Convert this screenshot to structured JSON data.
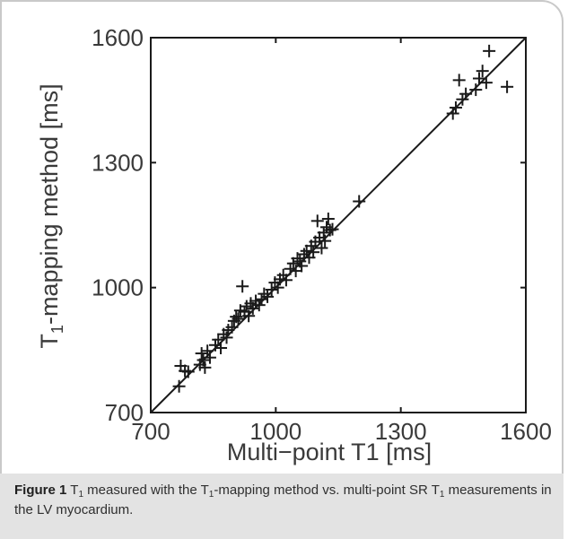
{
  "chart_data": {
    "type": "scatter",
    "xlabel": "Multi−point T1 [ms]",
    "ylabel_main": "T",
    "ylabel_sub": "1",
    "ylabel_rest": "-mapping method [ms]",
    "xlim": [
      700,
      1600
    ],
    "ylim": [
      700,
      1600
    ],
    "xticks": [
      700,
      1000,
      1300,
      1600
    ],
    "yticks": [
      700,
      1000,
      1300,
      1600
    ],
    "grid": false,
    "legend": "none",
    "identity_line": true,
    "marker": "+",
    "color": "#1a1a1a",
    "points": [
      [
        768,
        763
      ],
      [
        772,
        812
      ],
      [
        782,
        800
      ],
      [
        790,
        798
      ],
      [
        818,
        815
      ],
      [
        822,
        842
      ],
      [
        826,
        826
      ],
      [
        830,
        808
      ],
      [
        836,
        848
      ],
      [
        842,
        832
      ],
      [
        855,
        862
      ],
      [
        862,
        875
      ],
      [
        868,
        855
      ],
      [
        875,
        888
      ],
      [
        882,
        880
      ],
      [
        886,
        898
      ],
      [
        895,
        905
      ],
      [
        900,
        920
      ],
      [
        905,
        930
      ],
      [
        910,
        925
      ],
      [
        915,
        945
      ],
      [
        920,
        1003
      ],
      [
        925,
        942
      ],
      [
        930,
        955
      ],
      [
        935,
        932
      ],
      [
        940,
        962
      ],
      [
        945,
        950
      ],
      [
        952,
        968
      ],
      [
        960,
        958
      ],
      [
        966,
        972
      ],
      [
        972,
        985
      ],
      [
        980,
        978
      ],
      [
        990,
        995
      ],
      [
        998,
        1012
      ],
      [
        1005,
        1000
      ],
      [
        1010,
        1020
      ],
      [
        1018,
        1030
      ],
      [
        1025,
        1018
      ],
      [
        1035,
        1045
      ],
      [
        1042,
        1058
      ],
      [
        1048,
        1040
      ],
      [
        1052,
        1070
      ],
      [
        1058,
        1063
      ],
      [
        1062,
        1052
      ],
      [
        1068,
        1080
      ],
      [
        1074,
        1088
      ],
      [
        1080,
        1072
      ],
      [
        1085,
        1100
      ],
      [
        1090,
        1085
      ],
      [
        1095,
        1110
      ],
      [
        1100,
        1160
      ],
      [
        1105,
        1120
      ],
      [
        1110,
        1095
      ],
      [
        1115,
        1132
      ],
      [
        1118,
        1112
      ],
      [
        1122,
        1145
      ],
      [
        1126,
        1165
      ],
      [
        1130,
        1138
      ],
      [
        1136,
        1140
      ],
      [
        1200,
        1207
      ],
      [
        1425,
        1418
      ],
      [
        1432,
        1432
      ],
      [
        1440,
        1498
      ],
      [
        1448,
        1452
      ],
      [
        1456,
        1465
      ],
      [
        1480,
        1475
      ],
      [
        1488,
        1502
      ],
      [
        1496,
        1520
      ],
      [
        1505,
        1492
      ],
      [
        1512,
        1568
      ],
      [
        1555,
        1482
      ]
    ]
  },
  "caption": {
    "label": "Figure 1",
    "t1": "T",
    "sub1": "1",
    "part1": " measured with the T",
    "sub2": "1",
    "part2": "-mapping method vs. multi-point SR T",
    "sub3": "1",
    "part3": " measurements in the LV myocardium."
  }
}
